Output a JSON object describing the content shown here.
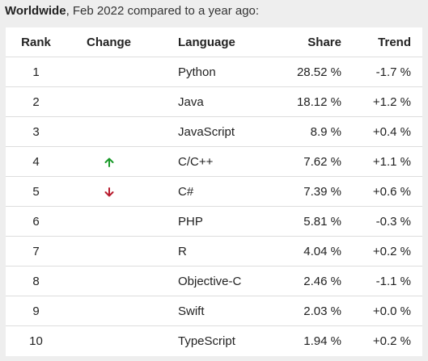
{
  "heading": {
    "bold": "Worldwide",
    "rest": ", Feb 2022 compared to a year ago:"
  },
  "columns": {
    "rank": "Rank",
    "change": "Change",
    "language": "Language",
    "share": "Share",
    "trend": "Trend"
  },
  "colors": {
    "up": "#1a9a2a",
    "down": "#b81c2e"
  },
  "rows": [
    {
      "rank": "1",
      "change": "",
      "language": "Python",
      "share": "28.52 %",
      "trend": "-1.7 %"
    },
    {
      "rank": "2",
      "change": "",
      "language": "Java",
      "share": "18.12 %",
      "trend": "+1.2 %"
    },
    {
      "rank": "3",
      "change": "",
      "language": "JavaScript",
      "share": "8.9 %",
      "trend": "+0.4 %"
    },
    {
      "rank": "4",
      "change": "up",
      "language": "C/C++",
      "share": "7.62 %",
      "trend": "+1.1 %"
    },
    {
      "rank": "5",
      "change": "down",
      "language": "C#",
      "share": "7.39 %",
      "trend": "+0.6 %"
    },
    {
      "rank": "6",
      "change": "",
      "language": "PHP",
      "share": "5.81 %",
      "trend": "-0.3 %"
    },
    {
      "rank": "7",
      "change": "",
      "language": "R",
      "share": "4.04 %",
      "trend": "+0.2 %"
    },
    {
      "rank": "8",
      "change": "",
      "language": "Objective-C",
      "share": "2.46 %",
      "trend": "-1.1 %"
    },
    {
      "rank": "9",
      "change": "",
      "language": "Swift",
      "share": "2.03 %",
      "trend": "+0.0 %"
    },
    {
      "rank": "10",
      "change": "",
      "language": "TypeScript",
      "share": "1.94 %",
      "trend": "+0.2 %"
    }
  ]
}
